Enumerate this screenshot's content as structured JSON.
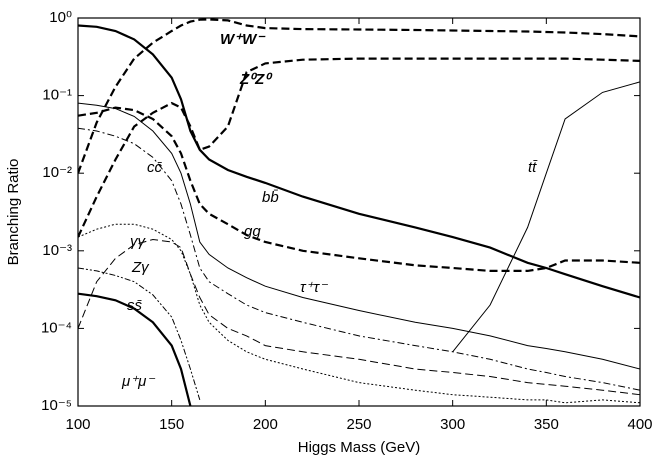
{
  "chart_data": {
    "type": "line",
    "x_label": "Higgs Mass (GeV)",
    "y_label": "Branching Ratio",
    "log_y": true,
    "xlim": [
      100,
      400
    ],
    "ylim": [
      1e-05,
      1
    ],
    "xticks": [
      100,
      150,
      200,
      250,
      300,
      350,
      400
    ],
    "yticks": [
      {
        "value": 1e-05,
        "label": "10⁻⁵"
      },
      {
        "value": 0.0001,
        "label": "10⁻⁴"
      },
      {
        "value": 0.001,
        "label": "10⁻³"
      },
      {
        "value": 0.01,
        "label": "10⁻²"
      },
      {
        "value": 0.1,
        "label": "10⁻¹"
      },
      {
        "value": 1,
        "label": "10⁰"
      }
    ],
    "x": [
      100,
      110,
      120,
      130,
      140,
      150,
      155,
      160,
      165,
      170,
      180,
      190,
      200,
      220,
      250,
      280,
      300,
      320,
      340,
      350,
      360,
      380,
      400
    ],
    "series": [
      {
        "name": "W⁺W⁻",
        "color": "#000000",
        "dash": "dashed",
        "thick": true,
        "values": [
          0.01,
          0.045,
          0.13,
          0.3,
          0.48,
          0.68,
          0.8,
          0.9,
          0.95,
          0.96,
          0.93,
          0.8,
          0.74,
          0.72,
          0.71,
          0.7,
          0.69,
          0.68,
          0.67,
          0.66,
          0.65,
          0.62,
          0.58
        ]
      },
      {
        "name": "Z⁰Z⁰",
        "color": "#000000",
        "dash": "dashed",
        "thick": true,
        "values": [
          0.0015,
          0.005,
          0.015,
          0.04,
          0.06,
          0.08,
          0.07,
          0.04,
          0.02,
          0.022,
          0.04,
          0.2,
          0.26,
          0.29,
          0.3,
          0.3,
          0.3,
          0.3,
          0.3,
          0.3,
          0.3,
          0.29,
          0.28
        ]
      },
      {
        "name": "tt̄",
        "color": "#000000",
        "dash": "solid",
        "thick": false,
        "values": [
          null,
          null,
          null,
          null,
          null,
          null,
          null,
          null,
          null,
          null,
          null,
          null,
          null,
          null,
          null,
          null,
          5e-05,
          0.0002,
          0.002,
          0.01,
          0.05,
          0.11,
          0.15
        ]
      },
      {
        "name": "bb̄",
        "color": "#000000",
        "dash": "solid",
        "thick": true,
        "values": [
          0.8,
          0.77,
          0.68,
          0.53,
          0.34,
          0.17,
          0.09,
          0.035,
          0.02,
          0.015,
          0.011,
          0.009,
          0.0075,
          0.005,
          0.003,
          0.002,
          0.0015,
          0.0011,
          0.0007,
          0.0006,
          0.0005,
          0.00035,
          0.00025
        ]
      },
      {
        "name": "gg",
        "color": "#000000",
        "dash": "dashed",
        "thick": true,
        "values": [
          0.055,
          0.06,
          0.07,
          0.065,
          0.05,
          0.03,
          0.018,
          0.008,
          0.004,
          0.003,
          0.0022,
          0.0016,
          0.0013,
          0.001,
          0.0008,
          0.00065,
          0.0006,
          0.00055,
          0.00055,
          0.0006,
          0.00075,
          0.00075,
          0.0007
        ]
      },
      {
        "name": "τ⁺τ⁻",
        "color": "#000000",
        "dash": "solid",
        "thick": false,
        "values": [
          0.08,
          0.075,
          0.068,
          0.054,
          0.035,
          0.018,
          0.01,
          0.004,
          0.0013,
          0.0009,
          0.0006,
          0.00045,
          0.00035,
          0.00025,
          0.00017,
          0.00012,
          0.0001,
          8e-05,
          6e-05,
          5.5e-05,
          5e-05,
          4e-05,
          3e-05
        ]
      },
      {
        "name": "cc̄",
        "color": "#000000",
        "dash": "dashdot",
        "thick": false,
        "values": [
          0.038,
          0.035,
          0.03,
          0.024,
          0.016,
          0.008,
          0.004,
          0.0016,
          0.0006,
          0.0004,
          0.00028,
          0.0002,
          0.00016,
          0.00012,
          8e-05,
          6e-05,
          5e-05,
          4e-05,
          3e-05,
          2.7e-05,
          2.4e-05,
          2e-05,
          1.6e-05
        ]
      },
      {
        "name": "γγ",
        "color": "#000000",
        "dash": "dotted",
        "thick": false,
        "values": [
          0.0015,
          0.0019,
          0.0022,
          0.0022,
          0.0019,
          0.0014,
          0.001,
          0.0005,
          0.0002,
          0.00012,
          7e-05,
          5e-05,
          4e-05,
          3e-05,
          2e-05,
          1.6e-05,
          1.4e-05,
          1.3e-05,
          1.2e-05,
          1.2e-05,
          1.1e-05,
          1.2e-05,
          1.1e-05
        ]
      },
      {
        "name": "Zγ",
        "color": "#000000",
        "dash": "dashed",
        "thick": false,
        "values": [
          0.0001,
          0.0004,
          0.0008,
          0.0012,
          0.0014,
          0.0013,
          0.0011,
          0.0005,
          0.00025,
          0.00015,
          0.0001,
          8e-05,
          6e-05,
          5e-05,
          4e-05,
          3e-05,
          2.7e-05,
          2.4e-05,
          2e-05,
          1.9e-05,
          1.8e-05,
          1.6e-05,
          1.4e-05
        ]
      },
      {
        "name": "ss̄",
        "color": "#000000",
        "dash": "dashdotdot",
        "thick": false,
        "values": [
          0.0006,
          0.00055,
          0.00048,
          0.0004,
          0.00027,
          0.00014,
          7e-05,
          3e-05,
          1.2e-05,
          null,
          null,
          null,
          null,
          null,
          null,
          null,
          null,
          null,
          null,
          null,
          null,
          null,
          null
        ]
      },
      {
        "name": "μ⁺μ⁻",
        "color": "#000000",
        "dash": "solid",
        "thick": true,
        "values": [
          0.00028,
          0.00026,
          0.00023,
          0.00018,
          0.00012,
          6e-05,
          3e-05,
          1e-05,
          null,
          null,
          null,
          null,
          null,
          null,
          null,
          null,
          null,
          null,
          null,
          null,
          null,
          null,
          null
        ]
      }
    ]
  }
}
